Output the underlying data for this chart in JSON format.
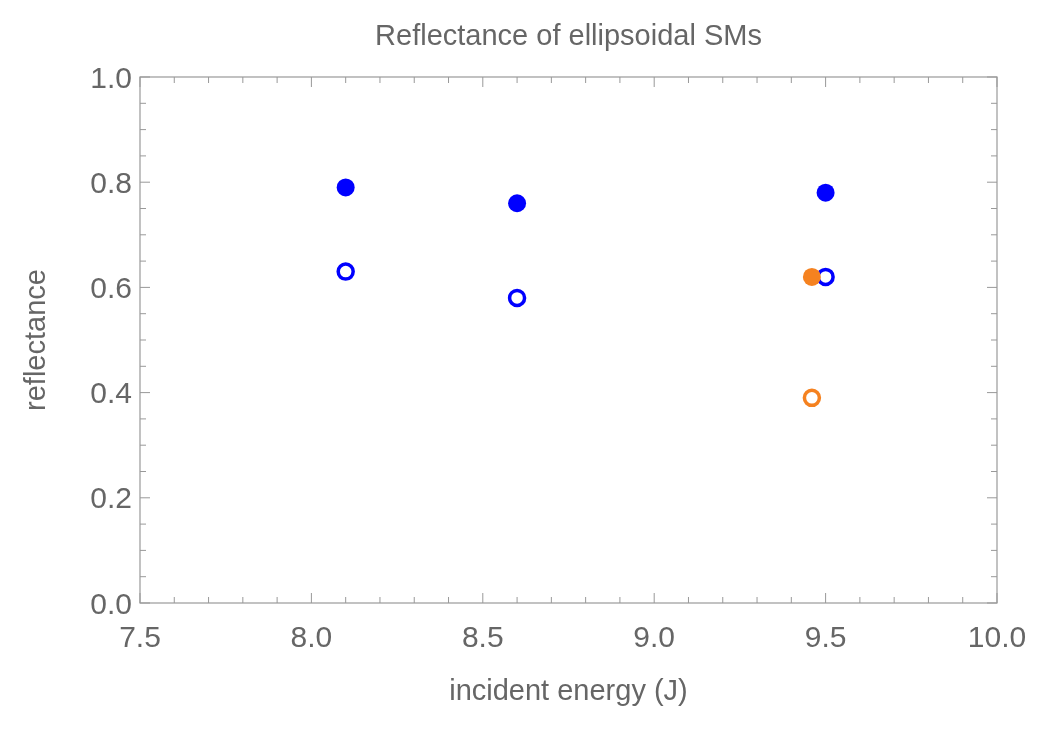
{
  "chart_data": {
    "type": "scatter",
    "title": "Reflectance of ellipsoidal SMs",
    "xlabel": "incident energy (J)",
    "ylabel": "reflectance",
    "xlim": [
      7.5,
      10.0
    ],
    "ylim": [
      0.0,
      1.0
    ],
    "xticks": [
      {
        "value": 7.5,
        "label": "7.5"
      },
      {
        "value": 7.6,
        "label": null
      },
      {
        "value": 7.7,
        "label": null
      },
      {
        "value": 7.8,
        "label": null
      },
      {
        "value": 7.9,
        "label": null
      },
      {
        "value": 8.0,
        "label": "8.0"
      },
      {
        "value": 8.1,
        "label": null
      },
      {
        "value": 8.2,
        "label": null
      },
      {
        "value": 8.3,
        "label": null
      },
      {
        "value": 8.4,
        "label": null
      },
      {
        "value": 8.5,
        "label": "8.5"
      },
      {
        "value": 8.6,
        "label": null
      },
      {
        "value": 8.7,
        "label": null
      },
      {
        "value": 8.8,
        "label": null
      },
      {
        "value": 8.9,
        "label": null
      },
      {
        "value": 9.0,
        "label": "9.0"
      },
      {
        "value": 9.1,
        "label": null
      },
      {
        "value": 9.2,
        "label": null
      },
      {
        "value": 9.3,
        "label": null
      },
      {
        "value": 9.4,
        "label": null
      },
      {
        "value": 9.5,
        "label": "9.5"
      },
      {
        "value": 9.6,
        "label": null
      },
      {
        "value": 9.7,
        "label": null
      },
      {
        "value": 9.8,
        "label": null
      },
      {
        "value": 9.9,
        "label": null
      },
      {
        "value": 10.0,
        "label": "10.0"
      }
    ],
    "yticks": [
      {
        "value": 0.0,
        "label": "0.0"
      },
      {
        "value": 0.05,
        "label": null
      },
      {
        "value": 0.1,
        "label": null
      },
      {
        "value": 0.15,
        "label": null
      },
      {
        "value": 0.2,
        "label": "0.2"
      },
      {
        "value": 0.25,
        "label": null
      },
      {
        "value": 0.3,
        "label": null
      },
      {
        "value": 0.35,
        "label": null
      },
      {
        "value": 0.4,
        "label": "0.4"
      },
      {
        "value": 0.45,
        "label": null
      },
      {
        "value": 0.5,
        "label": null
      },
      {
        "value": 0.55,
        "label": null
      },
      {
        "value": 0.6,
        "label": "0.6"
      },
      {
        "value": 0.65,
        "label": null
      },
      {
        "value": 0.7,
        "label": null
      },
      {
        "value": 0.75,
        "label": null
      },
      {
        "value": 0.8,
        "label": "0.8"
      },
      {
        "value": 0.85,
        "label": null
      },
      {
        "value": 0.9,
        "label": null
      },
      {
        "value": 0.95,
        "label": null
      },
      {
        "value": 1.0,
        "label": "1.0"
      }
    ],
    "grid": false,
    "series": [
      {
        "color": "#0000ff",
        "marker": "circle",
        "x": [
          8.1,
          8.6,
          9.5
        ],
        "values": [
          0.79,
          0.76,
          0.78
        ]
      },
      {
        "color": "#0000ff",
        "marker": "circle-open",
        "x": [
          8.1,
          8.6,
          9.5
        ],
        "values": [
          0.63,
          0.58,
          0.62
        ]
      },
      {
        "color": "#f58220",
        "marker": "circle",
        "x": [
          9.46
        ],
        "values": [
          0.62
        ]
      },
      {
        "color": "#f58220",
        "marker": "circle-open",
        "x": [
          9.46
        ],
        "values": [
          0.39
        ]
      }
    ]
  }
}
